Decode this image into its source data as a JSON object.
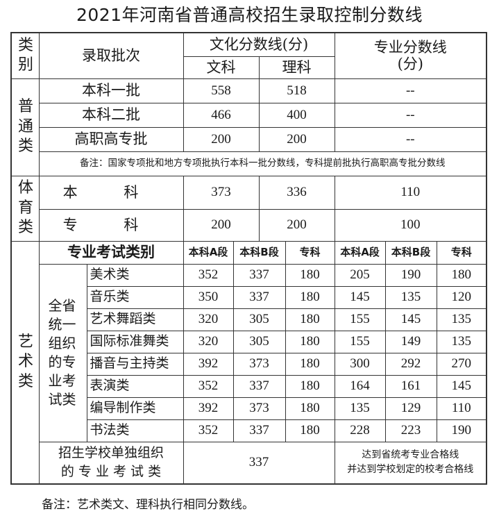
{
  "title": "2021年河南省普通高校招生录取控制分数线",
  "header": {
    "category": "类别",
    "batch": "录取批次",
    "culture": "文化分数线(分)",
    "arts": "文科",
    "science": "理科",
    "professional": "专业分数线(分)"
  },
  "general": {
    "label": "普通类",
    "rows": [
      {
        "batch": "本科一批",
        "arts": "558",
        "science": "518",
        "pro": "--"
      },
      {
        "batch": "本科二批",
        "arts": "466",
        "science": "400",
        "pro": "--"
      },
      {
        "batch": "高职高专批",
        "arts": "200",
        "science": "200",
        "pro": "--"
      }
    ],
    "note": "备注：国家专项批和地方专项批执行本科一批分数线，专科提前批执行高职高专批分数线"
  },
  "sports": {
    "label": "体育类",
    "rows": [
      {
        "batch": "本 科",
        "arts": "373",
        "science": "336",
        "pro": "110"
      },
      {
        "batch": "专 科",
        "arts": "200",
        "science": "200",
        "pro": "100"
      }
    ]
  },
  "art": {
    "label": "艺术类",
    "exam_category": "专业考试类别",
    "cols": [
      "本科A段",
      "本科B段",
      "专科",
      "本科A段",
      "本科B段",
      "专科"
    ],
    "unified_label": "全省统一组织的专业考试类",
    "rows": [
      {
        "name": "美术类",
        "values": [
          "352",
          "337",
          "180",
          "205",
          "190",
          "180"
        ]
      },
      {
        "name": "音乐类",
        "values": [
          "350",
          "337",
          "180",
          "145",
          "135",
          "120"
        ]
      },
      {
        "name": "艺术舞蹈类",
        "values": [
          "320",
          "305",
          "180",
          "155",
          "145",
          "135"
        ]
      },
      {
        "name": "国际标准舞类",
        "values": [
          "320",
          "305",
          "180",
          "155",
          "149",
          "135"
        ]
      },
      {
        "name": "播音与主持类",
        "values": [
          "392",
          "373",
          "180",
          "300",
          "292",
          "270"
        ]
      },
      {
        "name": "表演类",
        "values": [
          "352",
          "337",
          "180",
          "164",
          "161",
          "145"
        ]
      },
      {
        "name": "编导制作类",
        "values": [
          "392",
          "373",
          "180",
          "135",
          "129",
          "110"
        ]
      },
      {
        "name": "书法类",
        "values": [
          "352",
          "337",
          "180",
          "228",
          "223",
          "190"
        ]
      }
    ],
    "school": {
      "label_line1": "招生学校单独组织",
      "label_line2": "的 专 业 考 试 类",
      "culture": "337",
      "pro_line1": "达到省统考专业合格线",
      "pro_line2": "并达到学校划定的校考合格线"
    }
  },
  "footnote": "备注：艺术类文、理科执行相同分数线。"
}
